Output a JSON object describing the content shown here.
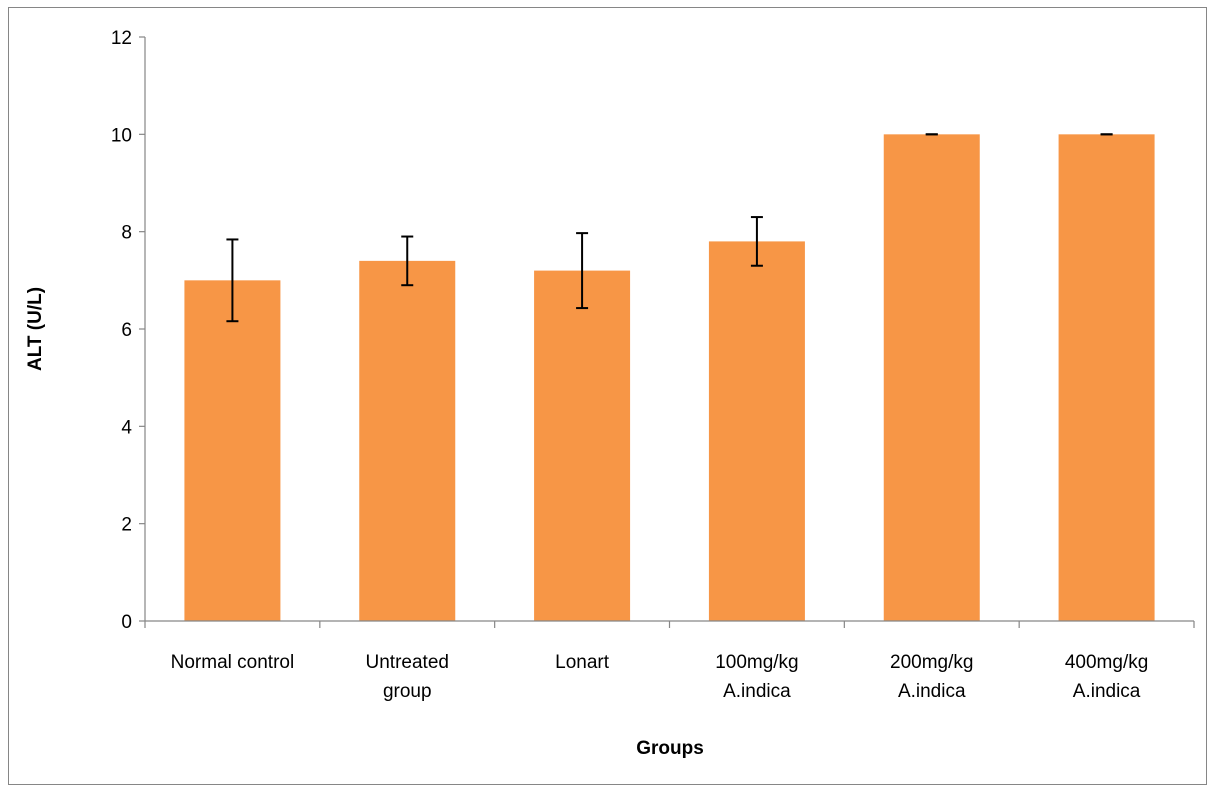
{
  "chart_data": {
    "type": "bar",
    "xlabel": "Groups",
    "ylabel": "ALT (U/L)",
    "ylim": [
      0,
      12
    ],
    "yticks": [
      0,
      2,
      4,
      6,
      8,
      10,
      12
    ],
    "grid": false,
    "legend": "none",
    "categories": [
      [
        "Normal control"
      ],
      [
        "Untreated",
        "group"
      ],
      [
        "Lonart"
      ],
      [
        "100mg/kg",
        "A.indica"
      ],
      [
        "200mg/kg",
        "A.indica"
      ],
      [
        "400mg/kg",
        "A.indica"
      ]
    ],
    "series": [
      {
        "values": [
          7.0,
          7.4,
          7.2,
          7.8,
          10.0,
          10.0
        ],
        "errors": [
          0.84,
          0.5,
          0.77,
          0.5,
          0.0,
          0.0
        ],
        "color": "#F79646"
      }
    ]
  }
}
